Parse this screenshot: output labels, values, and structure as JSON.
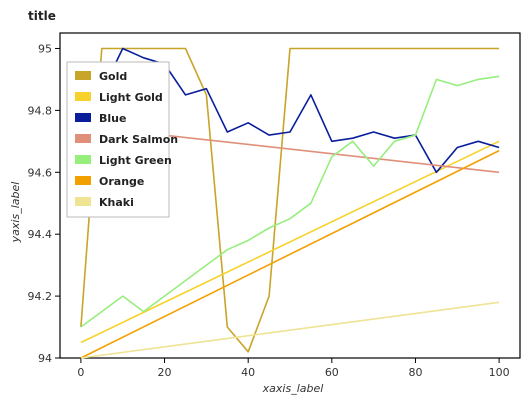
{
  "chart_data": {
    "type": "line",
    "title": "title",
    "xlabel": "xaxis_label",
    "ylabel": "yaxis_label",
    "xlim": [
      -5,
      105
    ],
    "ylim": [
      94,
      95.05
    ],
    "xticks": [
      0,
      20,
      40,
      60,
      80,
      100
    ],
    "yticks": [
      94,
      94.2,
      94.4,
      94.6,
      94.8,
      95
    ],
    "grid": false,
    "legend_position": "left-inside",
    "series": [
      {
        "name": "Gold",
        "color": "#c8a428",
        "x": [
          0,
          5,
          10,
          15,
          20,
          25,
          30,
          35,
          40,
          45,
          50,
          55,
          60,
          65,
          70,
          75,
          80,
          85,
          90,
          95,
          100
        ],
        "y": [
          94.1,
          95.0,
          95.0,
          95.0,
          95.0,
          95.0,
          94.85,
          94.1,
          94.02,
          94.2,
          95.0,
          95.0,
          95.0,
          95.0,
          95.0,
          95.0,
          95.0,
          95.0,
          95.0,
          95.0,
          95.0
        ]
      },
      {
        "name": "Light Gold",
        "color": "#f7d22a",
        "x": [
          0,
          100
        ],
        "y": [
          94.05,
          94.7
        ]
      },
      {
        "name": "Blue",
        "color": "#0a1e9c",
        "x": [
          0,
          5,
          10,
          15,
          20,
          25,
          30,
          35,
          40,
          45,
          50,
          55,
          60,
          65,
          70,
          75,
          80,
          85,
          90,
          95,
          100
        ],
        "y": [
          94.85,
          94.86,
          95.0,
          94.97,
          94.95,
          94.85,
          94.87,
          94.73,
          94.76,
          94.72,
          94.73,
          94.85,
          94.7,
          94.71,
          94.73,
          94.71,
          94.72,
          94.6,
          94.68,
          94.7,
          94.68
        ]
      },
      {
        "name": "Dark Salmon",
        "color": "#e0907a",
        "x": [
          0,
          100
        ],
        "y": [
          94.75,
          94.6
        ]
      },
      {
        "name": "Light Green",
        "color": "#96ee7d",
        "x": [
          0,
          5,
          10,
          15,
          20,
          25,
          30,
          35,
          40,
          45,
          50,
          55,
          60,
          65,
          70,
          75,
          80,
          85,
          90,
          95,
          100
        ],
        "y": [
          94.1,
          94.15,
          94.2,
          94.15,
          94.2,
          94.25,
          94.3,
          94.35,
          94.38,
          94.42,
          94.45,
          94.5,
          94.65,
          94.7,
          94.62,
          94.7,
          94.72,
          94.9,
          94.88,
          94.9,
          94.91
        ]
      },
      {
        "name": "Orange",
        "color": "#f2a000",
        "x": [
          0,
          100
        ],
        "y": [
          94.0,
          94.67
        ]
      },
      {
        "name": "Khaki",
        "color": "#efe394",
        "x": [
          0,
          100
        ],
        "y": [
          94.0,
          94.18
        ]
      }
    ]
  }
}
